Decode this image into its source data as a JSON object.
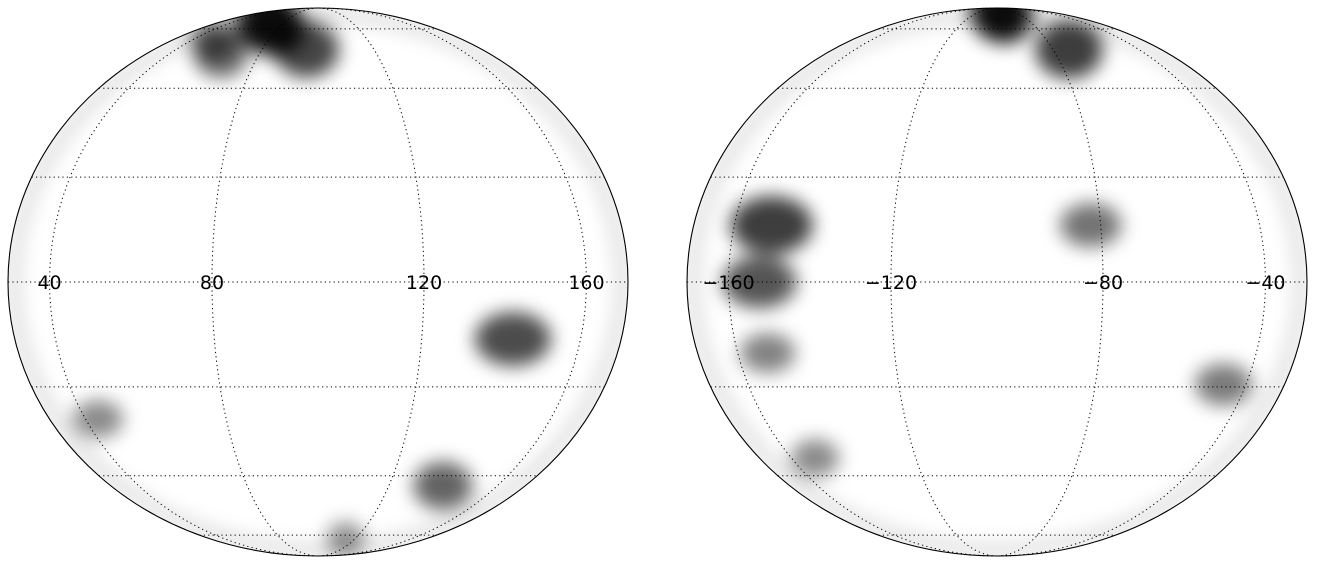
{
  "panels": [
    {
      "id": "left",
      "longitude_labels": [
        "40",
        "80",
        "120",
        "160"
      ],
      "longitudes": [
        40,
        80,
        120,
        160
      ],
      "features": [
        {
          "lon": 68,
          "lat": 72,
          "intensity": 0.95
        },
        {
          "lon": 78,
          "lat": 68,
          "intensity": 0.85
        },
        {
          "lon": 96,
          "lat": 58,
          "intensity": 0.8
        },
        {
          "lon": 66,
          "lat": 56,
          "intensity": 0.55
        },
        {
          "lon": 54,
          "lat": 62,
          "intensity": 0.45
        },
        {
          "lon": 140,
          "lat": -12,
          "intensity": 0.75
        },
        {
          "lon": 137,
          "lat": -48,
          "intensity": 0.6
        },
        {
          "lon": 45,
          "lat": -30,
          "intensity": 0.35
        },
        {
          "lon": 115,
          "lat": -70,
          "intensity": 0.3
        }
      ]
    },
    {
      "id": "right",
      "longitude_labels": [
        "−160",
        "−120",
        "−80",
        "−40"
      ],
      "longitudes": [
        -160,
        -120,
        -80,
        -40
      ],
      "features": [
        {
          "lon": -98,
          "lat": 82,
          "intensity": 0.95
        },
        {
          "lon": -93,
          "lat": 76,
          "intensity": 0.8
        },
        {
          "lon": -74,
          "lat": 58,
          "intensity": 0.85
        },
        {
          "lon": -148,
          "lat": 12,
          "intensity": 0.85
        },
        {
          "lon": -150,
          "lat": 0,
          "intensity": 0.7
        },
        {
          "lon": -82,
          "lat": 12,
          "intensity": 0.5
        },
        {
          "lon": -48,
          "lat": -22,
          "intensity": 0.45
        },
        {
          "lon": -150,
          "lat": -40,
          "intensity": 0.35
        },
        {
          "lon": -150,
          "lat": -15,
          "intensity": 0.4
        }
      ]
    }
  ],
  "projection": {
    "type": "orthographic",
    "graticule_latitudes": [
      -67.5,
      -45,
      -22.5,
      0,
      22.5,
      45,
      67.5
    ],
    "colormap": "grayscale-inverted"
  },
  "colors": {
    "background": "#ffffff",
    "grid": "#000000",
    "feature": "#000000"
  }
}
